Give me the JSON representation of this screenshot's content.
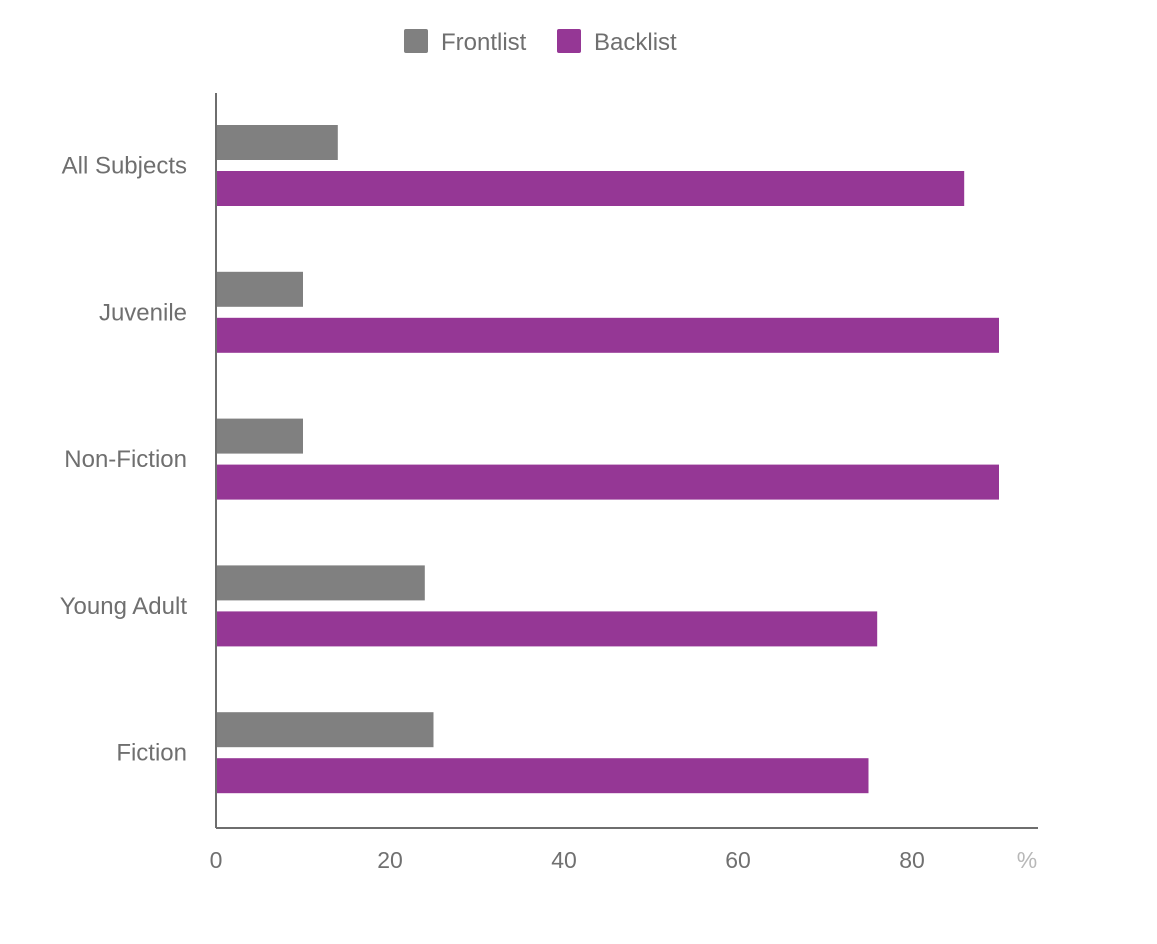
{
  "chart_data": {
    "type": "bar",
    "orientation": "horizontal",
    "title": "",
    "xlabel": "",
    "ylabel": "",
    "x_unit": "%",
    "categories": [
      "All Subjects",
      "Juvenile",
      "Non-Fiction",
      "Young Adult",
      "Fiction"
    ],
    "series": [
      {
        "name": "Frontlist",
        "color": "#808080",
        "values": [
          14,
          10,
          10,
          24,
          25
        ]
      },
      {
        "name": "Backlist",
        "color": "#953795",
        "values": [
          86,
          90,
          90,
          76,
          75
        ]
      }
    ],
    "xlim": [
      0,
      95
    ],
    "xticks": [
      0,
      20,
      40,
      60,
      80
    ],
    "legend": "top-center",
    "grid": false
  }
}
